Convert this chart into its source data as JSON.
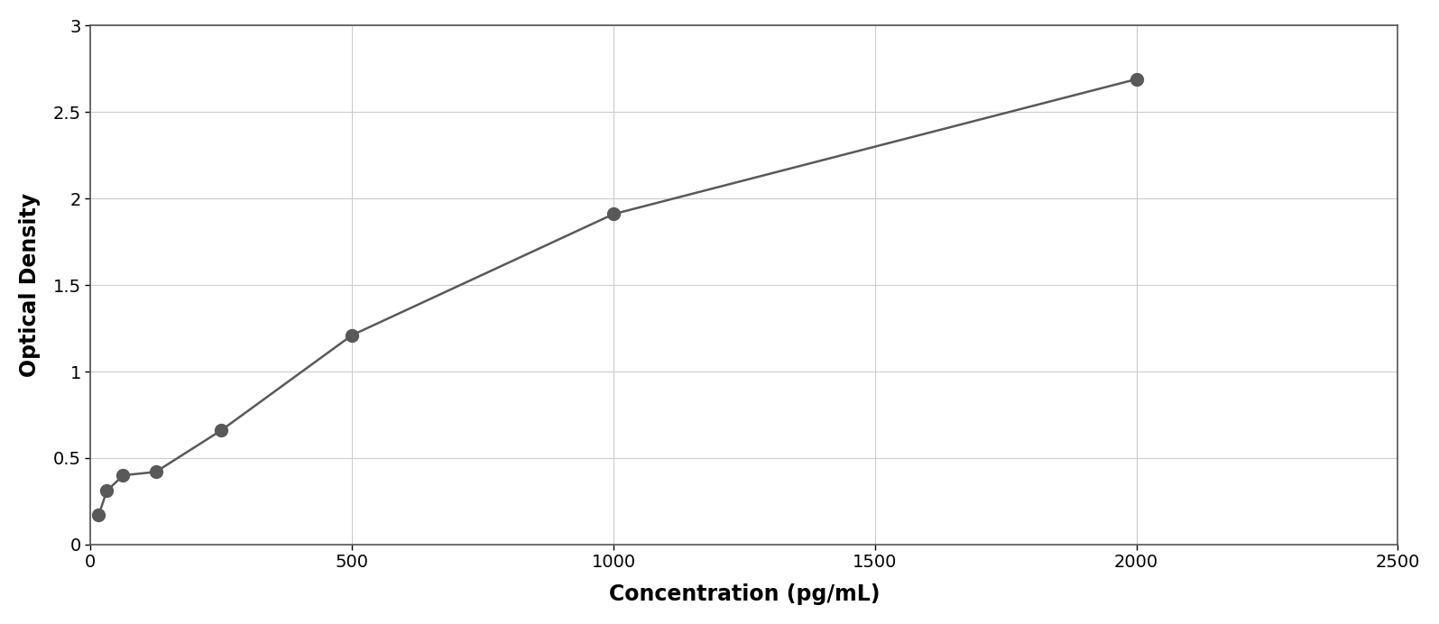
{
  "x_data": [
    15.625,
    31.25,
    62.5,
    125,
    250,
    500,
    1000,
    2000
  ],
  "y_data": [
    0.17,
    0.31,
    0.4,
    0.42,
    0.66,
    1.21,
    1.91,
    2.69
  ],
  "xlabel": "Concentration (pg/mL)",
  "ylabel": "Optical Density",
  "xlim": [
    0,
    2500
  ],
  "ylim": [
    0,
    3
  ],
  "xticks": [
    0,
    500,
    1000,
    1500,
    2000,
    2500
  ],
  "yticks": [
    0,
    0.5,
    1.0,
    1.5,
    2.0,
    2.5,
    3.0
  ],
  "marker_color": "#595959",
  "line_color": "#595959",
  "background_color": "#ffffff",
  "plot_bg_color": "#ffffff",
  "grid_color": "#cccccc",
  "marker_size": 10,
  "line_width": 1.8,
  "xlabel_fontsize": 17,
  "ylabel_fontsize": 17,
  "tick_fontsize": 14,
  "border_color": "#888888"
}
